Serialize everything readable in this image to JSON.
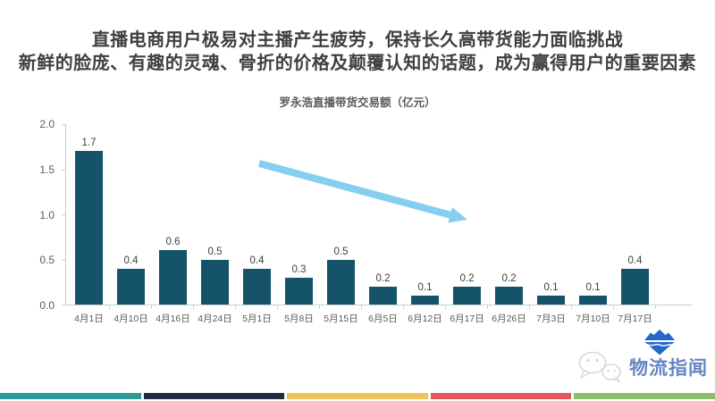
{
  "header": {
    "title_line1": "直播电商用户极易对主播产生疲劳，保持长久高带货能力面临挑战",
    "title_line2": "新鲜的脸庞、有趣的灵魂、骨折的价格及颠覆认知的话题，成为赢得用户的重要因素"
  },
  "chart_data": {
    "type": "bar",
    "title": "罗永浩直播带货交易额（亿元）",
    "categories": [
      "4月1日",
      "4月10日",
      "4月16日",
      "4月24日",
      "5月1日",
      "5月8日",
      "5月15日",
      "6月5日",
      "6月12日",
      "6月17日",
      "6月26日",
      "7月3日",
      "7月10日",
      "7月17日"
    ],
    "values": [
      1.7,
      0.4,
      0.6,
      0.5,
      0.4,
      0.3,
      0.5,
      0.2,
      0.1,
      0.2,
      0.2,
      0.1,
      0.1,
      0.4
    ],
    "xlabel": "",
    "ylabel": "",
    "ylim": [
      0,
      2.0
    ],
    "yticks": [
      "0.0",
      "0.5",
      "1.0",
      "1.5",
      "2.0"
    ],
    "grid": false,
    "legend": null,
    "annotations": [
      {
        "type": "arrow",
        "direction": "down-right",
        "meaning": "declining trend across dates"
      }
    ]
  },
  "logo": {
    "text": "物流指闻"
  },
  "colors": {
    "bar": "#15536B",
    "arrow": "#85CEEF",
    "axis": "#CCCCCC",
    "title_text": "#3F3F3F",
    "label_text": "#595959",
    "logo_blue": "#2767C9",
    "logo_text": "#5578BE",
    "watermark_gray": "#CFCFCF",
    "footer_segments": [
      "#2A9B99",
      "#202C41",
      "#F0C45C",
      "#E5565A",
      "#8CBF6C"
    ]
  }
}
